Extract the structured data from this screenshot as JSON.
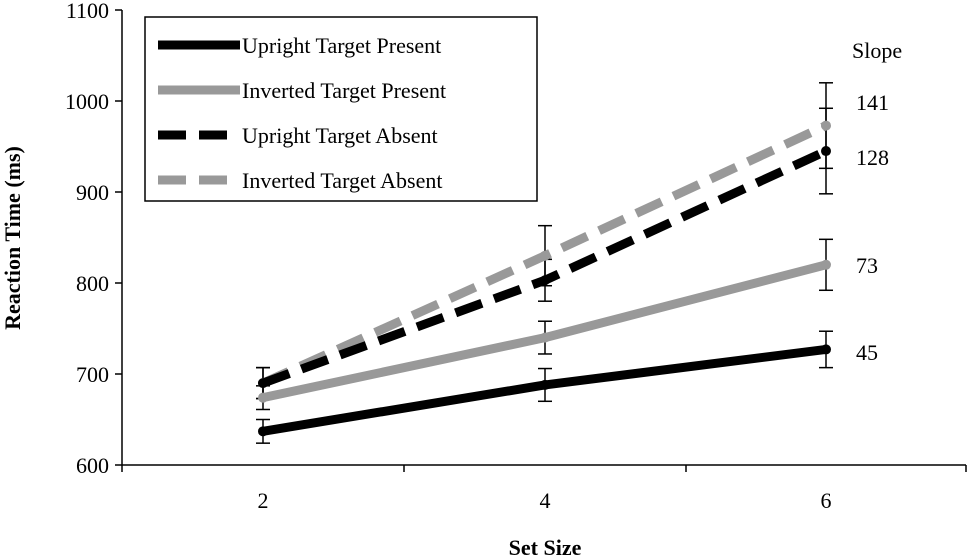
{
  "chart_data": {
    "type": "line",
    "title": "",
    "xlabel": "Set Size",
    "ylabel": "Reaction Time (ms)",
    "x": [
      2,
      4,
      6
    ],
    "ylim": [
      600,
      1100
    ],
    "yticks": [
      600,
      700,
      800,
      900,
      1000,
      1100
    ],
    "grid": false,
    "legend_position": "top-left",
    "series": [
      {
        "name": "Upright Target Present",
        "values": [
          637,
          688,
          727
        ],
        "errors": [
          13,
          18,
          20
        ],
        "color": "#000000",
        "dash": "solid",
        "slope": "45"
      },
      {
        "name": "Inverted Target Present",
        "values": [
          674,
          740,
          820
        ],
        "errors": [
          13,
          18,
          28
        ],
        "color": "#999999",
        "dash": "solid",
        "slope": "73"
      },
      {
        "name": "Upright Target Absent",
        "values": [
          690,
          803,
          945
        ],
        "errors": [
          17,
          23,
          47
        ],
        "color": "#000000",
        "dash": "dashed",
        "slope": "128"
      },
      {
        "name": "Inverted Target Absent",
        "values": [
          690,
          830,
          973
        ],
        "errors": [
          17,
          33,
          47
        ],
        "color": "#999999",
        "dash": "dashed",
        "slope": "141"
      }
    ],
    "annotations": {
      "slope_header": "Slope"
    }
  }
}
